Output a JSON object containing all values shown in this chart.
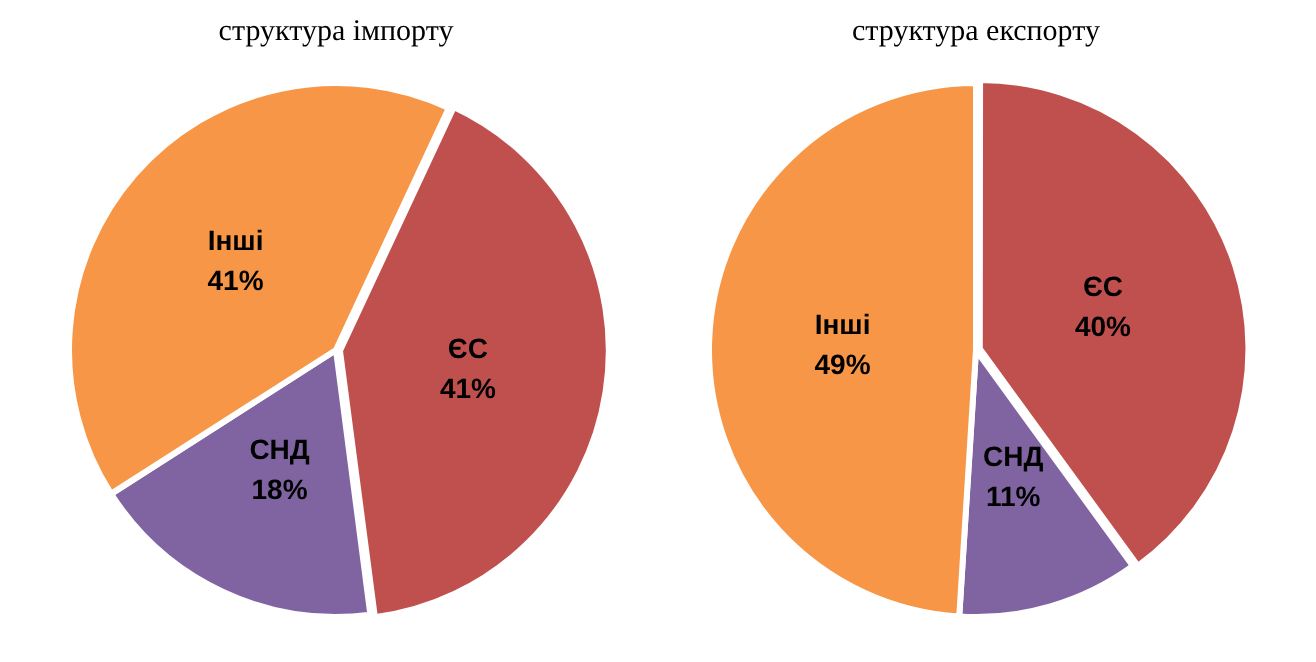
{
  "chart_data": [
    {
      "type": "pie",
      "title": "структура імпорту",
      "categories": [
        "ЄС",
        "СНД",
        "Інші"
      ],
      "values": [
        41,
        18,
        41
      ],
      "colors": [
        "#c0504d",
        "#8064a2",
        "#f79646"
      ],
      "value_labels": [
        "41%",
        "18%",
        "41%"
      ]
    },
    {
      "type": "pie",
      "title": "структура експорту",
      "categories": [
        "ЄС",
        "СНД",
        "Інші"
      ],
      "values": [
        40,
        11,
        49
      ],
      "colors": [
        "#c0504d",
        "#8064a2",
        "#f79646"
      ],
      "value_labels": [
        "40%",
        "11%",
        "49%"
      ]
    }
  ]
}
